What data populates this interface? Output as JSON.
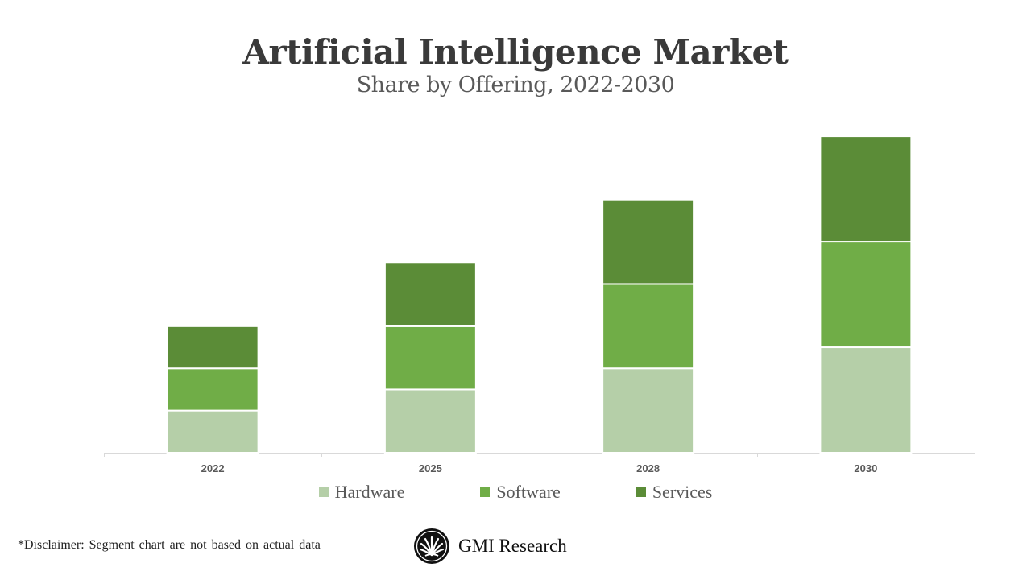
{
  "chart_data": {
    "type": "bar",
    "stacked": true,
    "title": "Artificial Intelligence Market",
    "subtitle": "Share by Offering, 2022-2030",
    "categories": [
      "2022",
      "2025",
      "2028",
      "2030"
    ],
    "series": [
      {
        "name": "Hardware",
        "values": [
          2,
          3,
          4,
          5
        ],
        "color": "#b5cfa8"
      },
      {
        "name": "Software",
        "values": [
          2,
          3,
          4,
          5
        ],
        "color": "#70ad47"
      },
      {
        "name": "Services",
        "values": [
          2,
          3,
          4,
          5
        ],
        "color": "#5b8c37"
      }
    ],
    "xlabel": "",
    "ylabel": "",
    "ylim": [
      0,
      15.5
    ],
    "grid": false,
    "y_axis_visible": false,
    "legend": "bottom"
  },
  "footer": {
    "disclaimer": "*Disclaimer:   Segment chart are not based on actual data",
    "logo_text": "GMI Research"
  }
}
